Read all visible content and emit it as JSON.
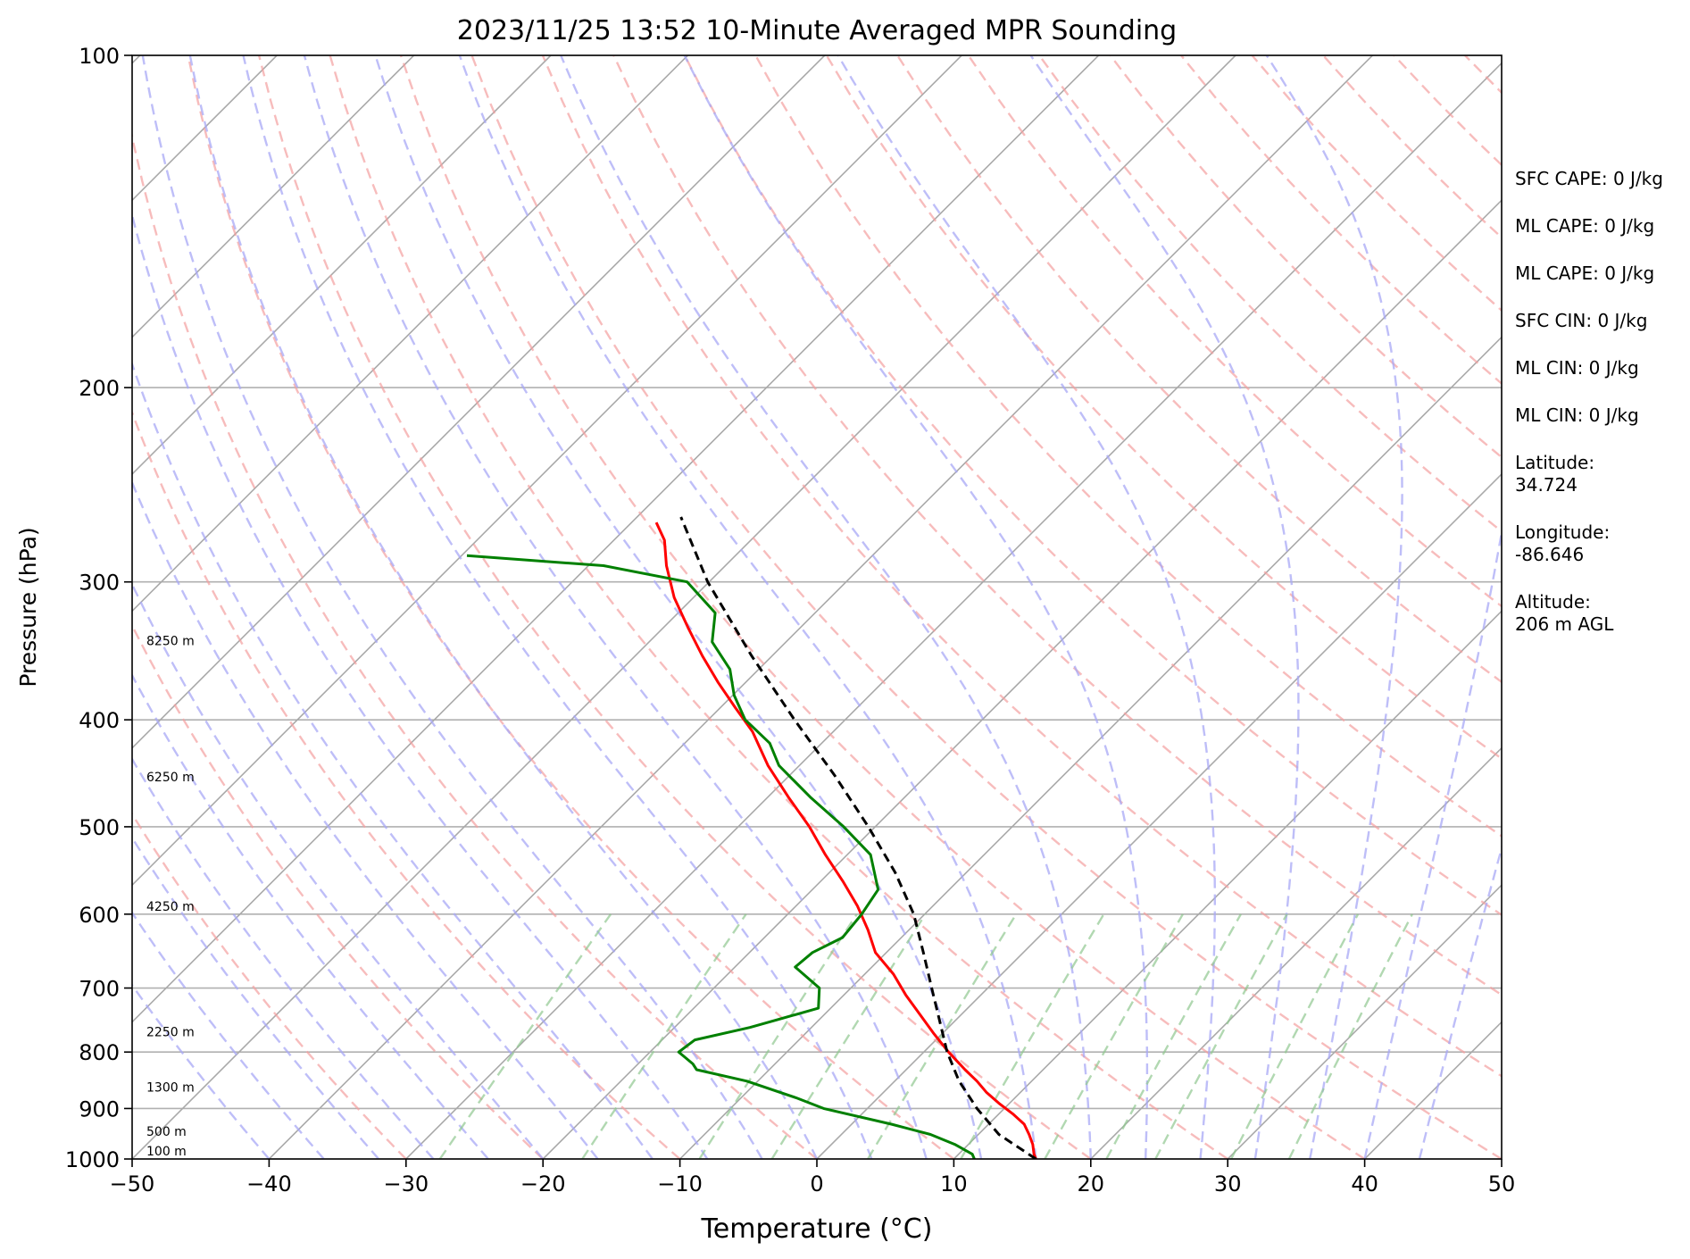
{
  "chart_data": {
    "type": "line",
    "title": "2023/11/25 13:52 10-Minute Averaged MPR Sounding",
    "xlabel": "Temperature (°C)",
    "ylabel": "Pressure (hPa)",
    "xlim": [
      -50,
      50
    ],
    "ylim": [
      1000,
      100
    ],
    "y_scale": "log",
    "x_ticks": [
      -50,
      -40,
      -30,
      -20,
      -10,
      0,
      10,
      20,
      30,
      40,
      50
    ],
    "x_tick_labels": [
      "−50",
      "−40",
      "−30",
      "−20",
      "−10",
      "0",
      "10",
      "20",
      "30",
      "40",
      "50"
    ],
    "y_ticks": [
      1000,
      900,
      800,
      700,
      600,
      500,
      400,
      300,
      200,
      100
    ],
    "y_tick_labels": [
      "1000",
      "900",
      "800",
      "700",
      "600",
      "500",
      "400",
      "300",
      "200",
      "100"
    ],
    "skew": true,
    "grid": true,
    "height_labels": [
      {
        "p": 1000,
        "text": "100 m"
      },
      {
        "p": 960,
        "text": "500 m"
      },
      {
        "p": 875,
        "text": "1300 m"
      },
      {
        "p": 780,
        "text": "2250 m"
      },
      {
        "p": 600,
        "text": "4250 m"
      },
      {
        "p": 458,
        "text": "6250 m"
      },
      {
        "p": 345,
        "text": "8250 m"
      }
    ],
    "series": [
      {
        "color": "#ff0000",
        "points": [
          [
            1000,
            16.0
          ],
          [
            990,
            15.5
          ],
          [
            970,
            14.7
          ],
          [
            950,
            13.7
          ],
          [
            930,
            12.6
          ],
          [
            910,
            11.0
          ],
          [
            890,
            9.2
          ],
          [
            870,
            7.5
          ],
          [
            850,
            6.0
          ],
          [
            830,
            4.3
          ],
          [
            800,
            1.8
          ],
          [
            770,
            -0.6
          ],
          [
            740,
            -3.0
          ],
          [
            710,
            -5.5
          ],
          [
            680,
            -7.9
          ],
          [
            650,
            -10.8
          ],
          [
            620,
            -13.0
          ],
          [
            590,
            -15.5
          ],
          [
            560,
            -18.4
          ],
          [
            530,
            -21.6
          ],
          [
            500,
            -24.8
          ],
          [
            470,
            -28.5
          ],
          [
            440,
            -32.3
          ],
          [
            410,
            -35.9
          ],
          [
            390,
            -38.9
          ],
          [
            370,
            -42.0
          ],
          [
            350,
            -45.1
          ],
          [
            330,
            -48.2
          ],
          [
            310,
            -51.4
          ],
          [
            290,
            -54.3
          ],
          [
            275,
            -56.3
          ],
          [
            265,
            -58.2
          ]
        ]
      },
      {
        "color": "#008000",
        "points": [
          [
            1000,
            11.5
          ],
          [
            990,
            11.0
          ],
          [
            970,
            9.0
          ],
          [
            950,
            6.5
          ],
          [
            930,
            2.9
          ],
          [
            900,
            -3.2
          ],
          [
            880,
            -6.0
          ],
          [
            850,
            -10.8
          ],
          [
            830,
            -15.3
          ],
          [
            820,
            -16.0
          ],
          [
            800,
            -17.9
          ],
          [
            780,
            -17.6
          ],
          [
            760,
            -14.5
          ],
          [
            730,
            -10.9
          ],
          [
            700,
            -12.3
          ],
          [
            670,
            -15.6
          ],
          [
            650,
            -15.4
          ],
          [
            630,
            -14.3
          ],
          [
            600,
            -14.6
          ],
          [
            570,
            -15.2
          ],
          [
            530,
            -18.3
          ],
          [
            500,
            -22.3
          ],
          [
            470,
            -26.9
          ],
          [
            440,
            -31.5
          ],
          [
            420,
            -33.8
          ],
          [
            400,
            -37.3
          ],
          [
            380,
            -39.9
          ],
          [
            360,
            -42.1
          ],
          [
            340,
            -45.4
          ],
          [
            320,
            -47.3
          ],
          [
            300,
            -51.6
          ],
          [
            290,
            -58.9
          ],
          [
            284,
            -69.6
          ]
        ]
      },
      {
        "color": "#000000",
        "dashed": true,
        "points": [
          [
            1000,
            16.0
          ],
          [
            950,
            11.5
          ],
          [
            900,
            8.0
          ],
          [
            850,
            4.7
          ],
          [
            800,
            1.7
          ],
          [
            750,
            -1.1
          ],
          [
            700,
            -4.1
          ],
          [
            650,
            -7.3
          ],
          [
            600,
            -10.8
          ],
          [
            550,
            -15.2
          ],
          [
            500,
            -20.5
          ],
          [
            450,
            -26.6
          ],
          [
            400,
            -33.7
          ],
          [
            350,
            -41.5
          ],
          [
            300,
            -50.1
          ],
          [
            262,
            -56.8
          ]
        ]
      }
    ],
    "info": {
      "sfc_cape": "SFC CAPE: 0 J/kg",
      "ml_cape": "ML CAPE: 0 J/kg",
      "ml_cape2": "ML CAPE: 0 J/kg",
      "sfc_cin": "SFC CIN: 0 J/kg",
      "ml_cin": "ML CIN: 0 J/kg",
      "ml_cin2": "ML CIN: 0 J/kg",
      "latitude": "Latitude:\n34.724",
      "longitude": "Longitude:\n-86.646",
      "altitude": "Altitude:\n206 m AGL"
    }
  }
}
